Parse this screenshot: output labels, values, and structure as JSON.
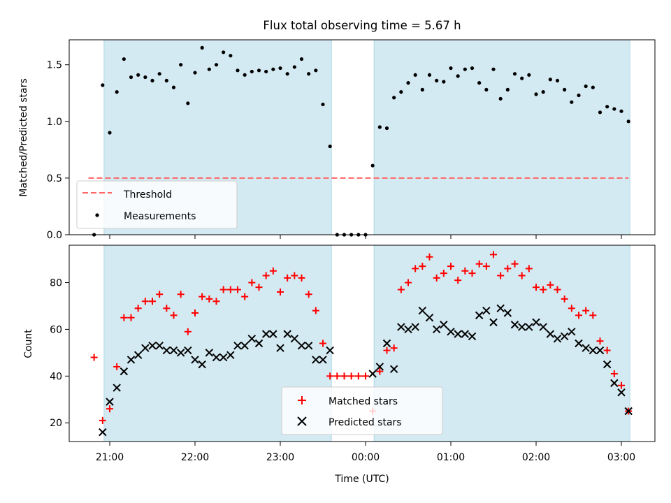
{
  "chart_data": [
    {
      "type": "scatter",
      "title": "Flux total observing time = 5.67 h",
      "ylabel": "Matched/Predicted stars",
      "xlabel": "",
      "ylim": [
        0,
        1.72
      ],
      "yticks": [
        "0.0",
        "0.5",
        "1.0",
        "1.5"
      ],
      "shaded_spans": [
        [
          "20:56",
          "23:36"
        ],
        [
          "00:06",
          "03:06"
        ]
      ],
      "shade_color": "#add8e6",
      "threshold": {
        "name": "Threshold",
        "value": 0.5,
        "color": "#ff6666",
        "style": "dashed"
      },
      "series": [
        {
          "name": "Measurements",
          "color": "#000000",
          "marker": "dot",
          "x": [
            "20:49",
            "20:55",
            "21:00",
            "21:05",
            "21:10",
            "21:15",
            "21:20",
            "21:25",
            "21:30",
            "21:35",
            "21:40",
            "21:45",
            "21:50",
            "21:55",
            "22:00",
            "22:05",
            "22:10",
            "22:15",
            "22:20",
            "22:25",
            "22:30",
            "22:35",
            "22:40",
            "22:45",
            "22:50",
            "22:55",
            "23:00",
            "23:05",
            "23:10",
            "23:15",
            "23:20",
            "23:25",
            "23:30",
            "23:35",
            "23:40",
            "23:45",
            "23:50",
            "23:55",
            "00:00",
            "00:05",
            "00:10",
            "00:15",
            "00:20",
            "00:25",
            "00:30",
            "00:35",
            "00:40",
            "00:45",
            "00:50",
            "00:55",
            "01:00",
            "01:05",
            "01:10",
            "01:15",
            "01:20",
            "01:25",
            "01:30",
            "01:35",
            "01:40",
            "01:45",
            "01:50",
            "01:55",
            "02:00",
            "02:05",
            "02:10",
            "02:15",
            "02:20",
            "02:25",
            "02:30",
            "02:35",
            "02:40",
            "02:45",
            "02:50",
            "02:55",
            "03:00",
            "03:05"
          ],
          "y": [
            0.0,
            1.32,
            0.9,
            1.26,
            1.55,
            1.39,
            1.41,
            1.39,
            1.36,
            1.42,
            1.36,
            1.3,
            1.5,
            1.16,
            1.43,
            1.65,
            1.46,
            1.5,
            1.61,
            1.58,
            1.45,
            1.41,
            1.44,
            1.45,
            1.44,
            1.46,
            1.47,
            1.42,
            1.48,
            1.55,
            1.42,
            1.45,
            1.15,
            0.78,
            0.0,
            0.0,
            0.0,
            0.0,
            0.0,
            0.61,
            0.95,
            0.94,
            1.21,
            1.26,
            1.34,
            1.41,
            1.28,
            1.41,
            1.36,
            1.35,
            1.47,
            1.4,
            1.46,
            1.47,
            1.34,
            1.28,
            1.46,
            1.2,
            1.28,
            1.42,
            1.38,
            1.41,
            1.24,
            1.26,
            1.37,
            1.36,
            1.28,
            1.17,
            1.23,
            1.31,
            1.3,
            1.08,
            1.13,
            1.11,
            1.09,
            1.0
          ]
        }
      ],
      "legend": {
        "placement": "lower-left",
        "entries": [
          "Threshold",
          "Measurements"
        ]
      }
    },
    {
      "type": "scatter",
      "title": "",
      "ylabel": "Count",
      "xlabel": "Time (UTC)",
      "ylim": [
        12,
        96
      ],
      "yticks": [
        "20",
        "40",
        "60",
        "80"
      ],
      "xticks": [
        "21:00",
        "22:00",
        "23:00",
        "00:00",
        "01:00",
        "02:00",
        "03:00"
      ],
      "shaded_spans": [
        [
          "20:56",
          "23:36"
        ],
        [
          "00:06",
          "03:06"
        ]
      ],
      "shade_color": "#add8e6",
      "series": [
        {
          "name": "Matched stars",
          "color": "#ff0000",
          "marker": "plus",
          "x": [
            "20:49",
            "20:55",
            "21:00",
            "21:05",
            "21:10",
            "21:15",
            "21:20",
            "21:25",
            "21:30",
            "21:35",
            "21:40",
            "21:45",
            "21:50",
            "21:55",
            "22:00",
            "22:05",
            "22:10",
            "22:15",
            "22:20",
            "22:25",
            "22:30",
            "22:35",
            "22:40",
            "22:45",
            "22:50",
            "22:55",
            "23:00",
            "23:05",
            "23:10",
            "23:15",
            "23:20",
            "23:25",
            "23:30",
            "23:35",
            "23:40",
            "23:45",
            "23:50",
            "23:55",
            "00:00",
            "00:05",
            "00:10",
            "00:15",
            "00:20",
            "00:25",
            "00:30",
            "00:35",
            "00:40",
            "00:45",
            "00:50",
            "00:55",
            "01:00",
            "01:05",
            "01:10",
            "01:15",
            "01:20",
            "01:25",
            "01:30",
            "01:35",
            "01:40",
            "01:45",
            "01:50",
            "01:55",
            "02:00",
            "02:05",
            "02:10",
            "02:15",
            "02:20",
            "02:25",
            "02:30",
            "02:35",
            "02:40",
            "02:45",
            "02:50",
            "02:55",
            "03:00",
            "03:05"
          ],
          "y": [
            48,
            21,
            26,
            44,
            65,
            65,
            69,
            72,
            72,
            75,
            69,
            66,
            75,
            59,
            67,
            74,
            73,
            72,
            77,
            77,
            77,
            74,
            80,
            78,
            83,
            85,
            76,
            82,
            83,
            82,
            75,
            68,
            54,
            40,
            40,
            40,
            40,
            40,
            40,
            25,
            42,
            51,
            52,
            77,
            80,
            86,
            87,
            91,
            82,
            84,
            87,
            81,
            85,
            84,
            88,
            87,
            92,
            83,
            86,
            88,
            83,
            86,
            78,
            77,
            79,
            77,
            73,
            69,
            66,
            68,
            66,
            55,
            51,
            41,
            36,
            25
          ]
        },
        {
          "name": "Predicted stars",
          "color": "#000000",
          "marker": "x",
          "x": [
            "20:55",
            "21:00",
            "21:05",
            "21:10",
            "21:15",
            "21:20",
            "21:25",
            "21:30",
            "21:35",
            "21:40",
            "21:45",
            "21:50",
            "21:55",
            "22:00",
            "22:05",
            "22:10",
            "22:15",
            "22:20",
            "22:25",
            "22:30",
            "22:35",
            "22:40",
            "22:45",
            "22:50",
            "22:55",
            "23:00",
            "23:05",
            "23:10",
            "23:15",
            "23:20",
            "23:25",
            "23:30",
            "23:35",
            "00:05",
            "00:10",
            "00:15",
            "00:20",
            "00:25",
            "00:30",
            "00:35",
            "00:40",
            "00:45",
            "00:50",
            "00:55",
            "01:00",
            "01:05",
            "01:10",
            "01:15",
            "01:20",
            "01:25",
            "01:30",
            "01:35",
            "01:40",
            "01:45",
            "01:50",
            "01:55",
            "02:00",
            "02:05",
            "02:10",
            "02:15",
            "02:20",
            "02:25",
            "02:30",
            "02:35",
            "02:40",
            "02:45",
            "02:50",
            "02:55",
            "03:00",
            "03:05"
          ],
          "y": [
            16,
            29,
            35,
            42,
            47,
            49,
            52,
            53,
            53,
            51,
            51,
            50,
            51,
            47,
            45,
            50,
            48,
            48,
            49,
            53,
            53,
            56,
            54,
            58,
            58,
            52,
            58,
            56,
            53,
            53,
            47,
            47,
            51,
            41,
            44,
            54,
            43,
            61,
            60,
            61,
            68,
            65,
            60,
            62,
            59,
            58,
            58,
            57,
            66,
            68,
            63,
            69,
            67,
            62,
            61,
            61,
            63,
            61,
            58,
            56,
            57,
            59,
            54,
            52,
            51,
            51,
            45,
            37,
            33,
            25
          ]
        }
      ],
      "legend": {
        "placement": "lower-center",
        "entries": [
          "Matched stars",
          "Predicted stars"
        ]
      }
    }
  ]
}
